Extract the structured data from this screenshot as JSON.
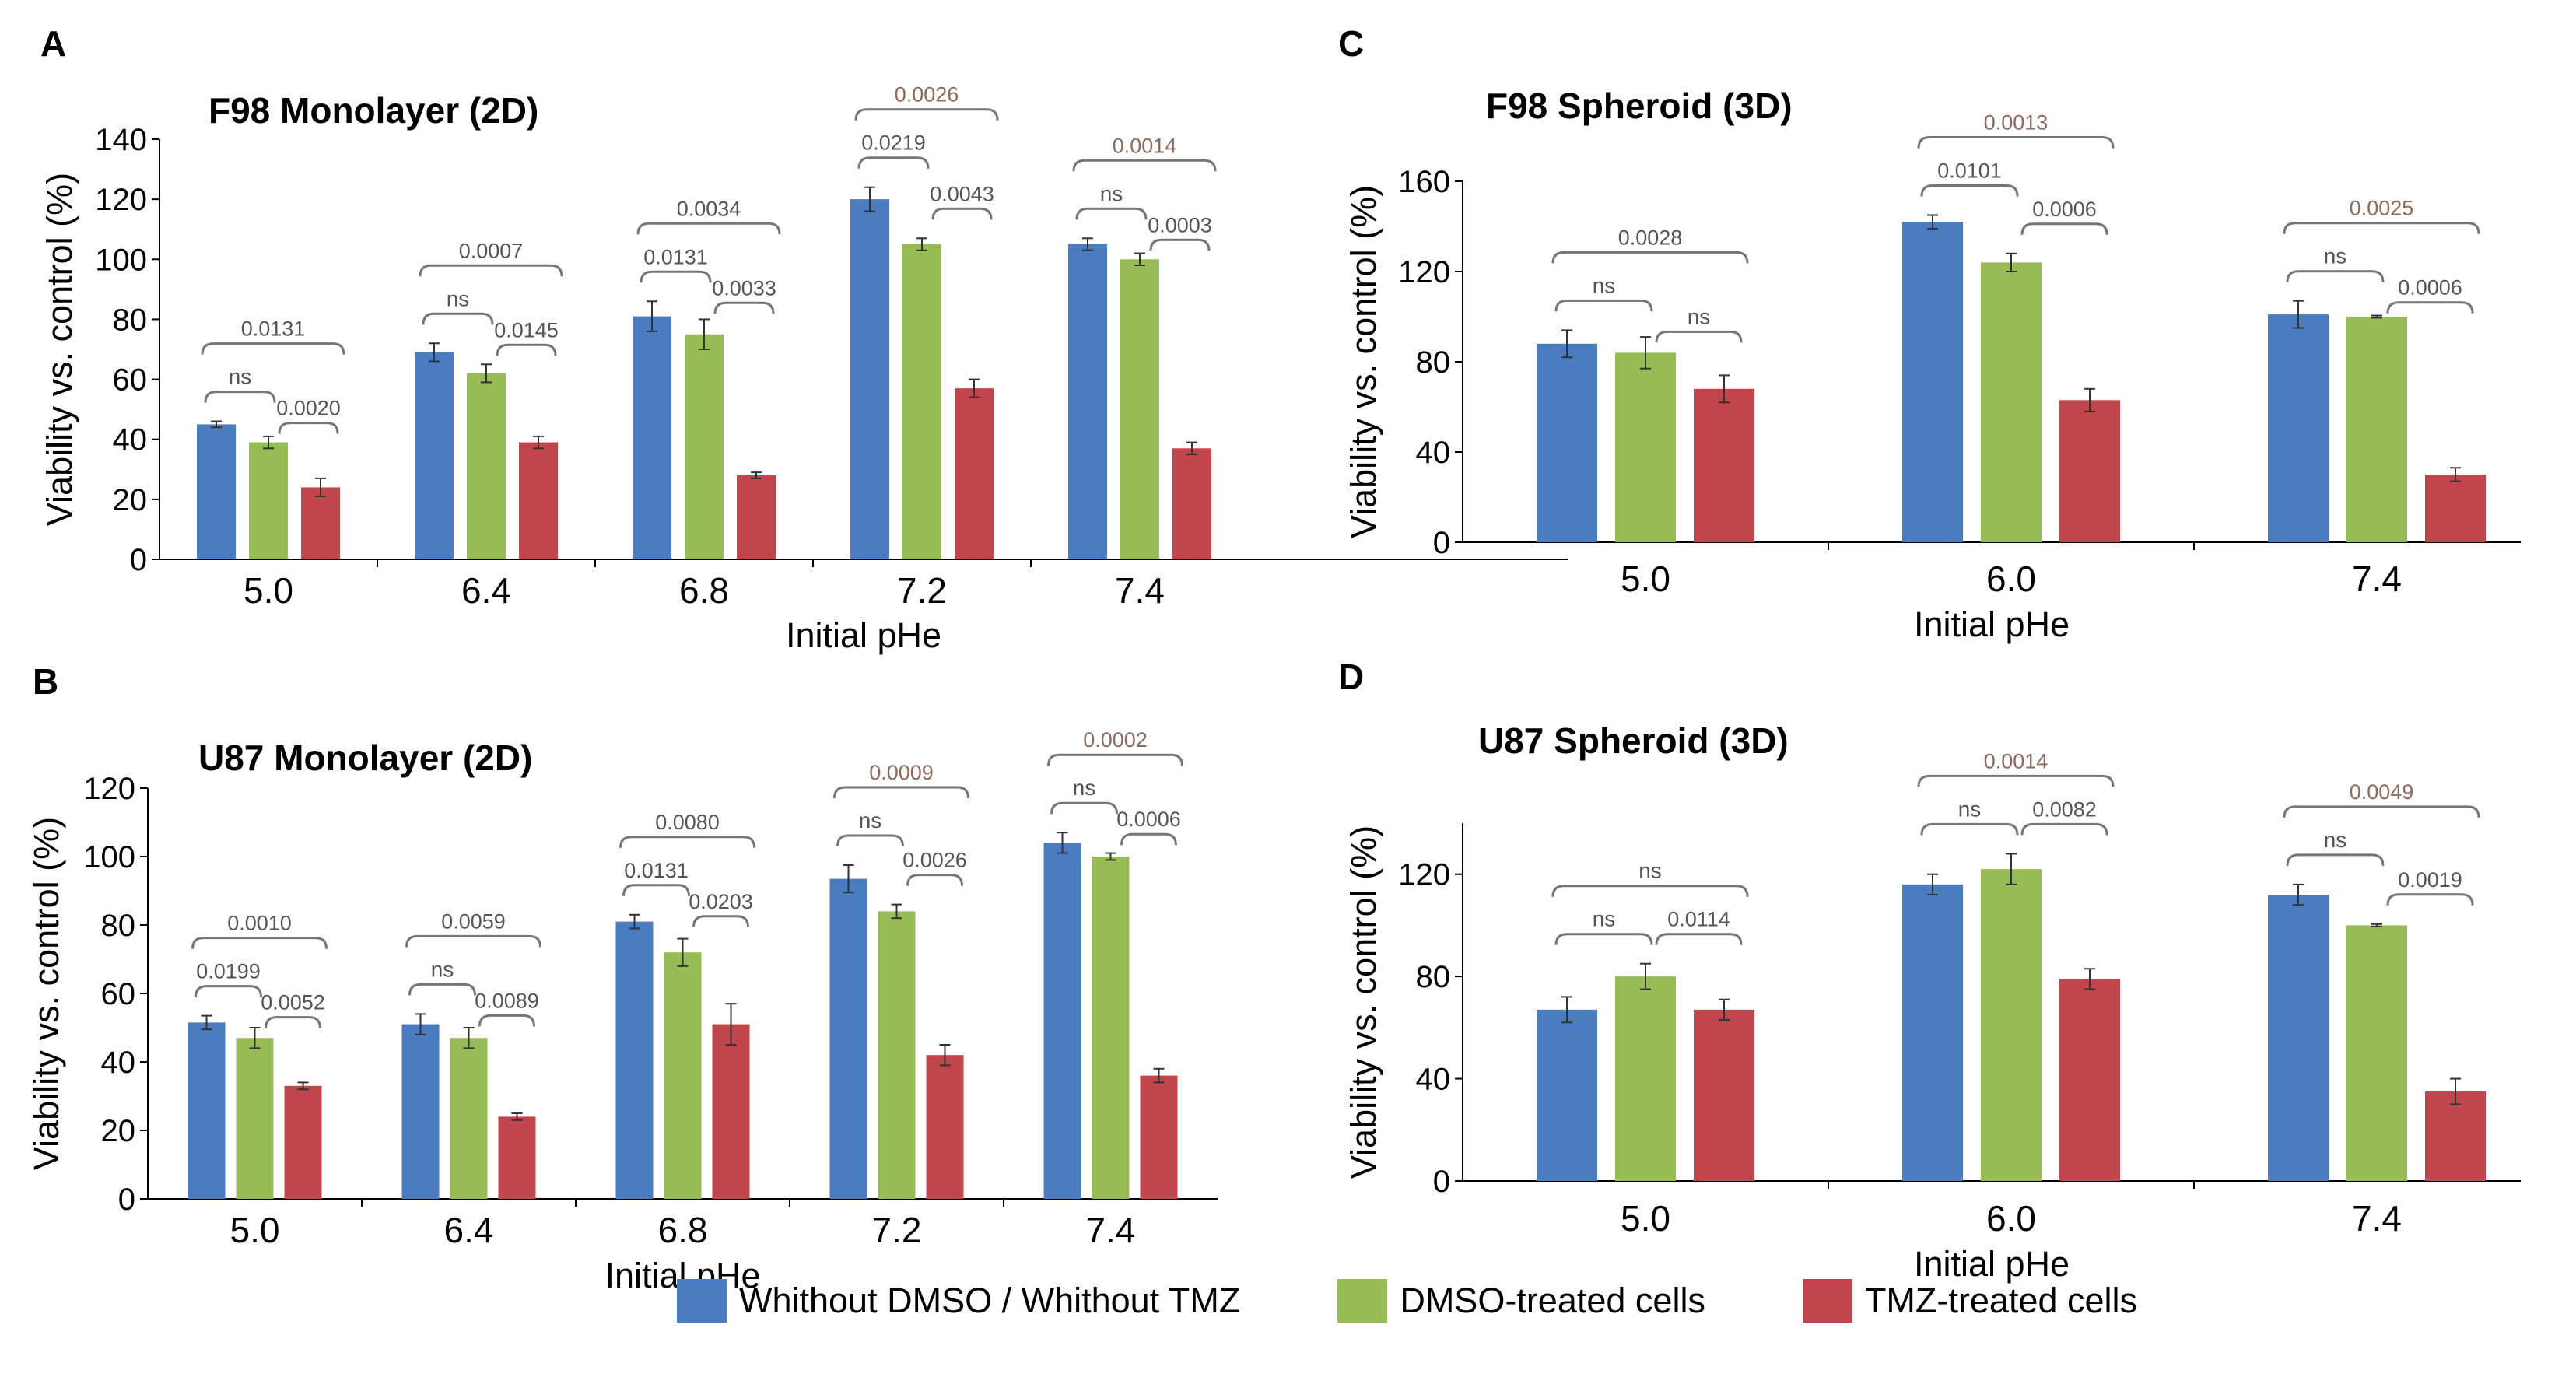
{
  "colors": {
    "blue": "#4a7cbf",
    "green": "#97bc55",
    "red": "#c0464b",
    "bracket": "#767676",
    "text": "#000000",
    "pvalue_highlight": "#8c6a5c"
  },
  "legend": {
    "items": [
      {
        "label": "Whithout DMSO / Whithout TMZ",
        "color": "#4a7cbf"
      },
      {
        "label": "DMSO-treated cells",
        "color": "#97bc55"
      },
      {
        "label": "TMZ-treated cells",
        "color": "#c0464b"
      }
    ]
  },
  "chart_data": [
    {
      "panel": "A",
      "type": "bar",
      "title": "F98 Monolayer (2D)",
      "xlabel": "Initial pHe",
      "ylabel": "Viability vs. control (%)",
      "ylim": [
        0,
        140
      ],
      "yticks": [
        0,
        20,
        40,
        60,
        80,
        100,
        120,
        140
      ],
      "categories": [
        "5.0",
        "6.4",
        "6.8",
        "7.2",
        "7.4"
      ],
      "series": [
        {
          "name": "Whithout DMSO / Whithout TMZ",
          "values": [
            45,
            69,
            81,
            120,
            105
          ],
          "errors": [
            1,
            3,
            5,
            4,
            2
          ]
        },
        {
          "name": "DMSO-treated cells",
          "values": [
            39,
            62,
            75,
            105,
            100
          ],
          "errors": [
            2,
            3,
            5,
            2,
            2
          ]
        },
        {
          "name": "TMZ-treated cells",
          "values": [
            24,
            39,
            28,
            57,
            37
          ],
          "errors": [
            3,
            2,
            1,
            3,
            2
          ]
        }
      ],
      "comparisons": [
        [
          {
            "level": "outer",
            "label": "0.0131"
          },
          {
            "level": "left",
            "label": "ns"
          },
          {
            "level": "right",
            "label": "0.0020"
          }
        ],
        [
          {
            "level": "outer",
            "label": "0.0007"
          },
          {
            "level": "left",
            "label": "ns"
          },
          {
            "level": "right",
            "label": "0.0145"
          }
        ],
        [
          {
            "level": "outer",
            "label": "0.0034"
          },
          {
            "level": "left",
            "label": "0.0131"
          },
          {
            "level": "right",
            "label": "0.0033"
          }
        ],
        [
          {
            "level": "outer",
            "label": "0.0026"
          },
          {
            "level": "left",
            "label": "0.0219"
          },
          {
            "level": "right",
            "label": "0.0043"
          }
        ],
        [
          {
            "level": "outer",
            "label": "0.0014"
          },
          {
            "level": "left",
            "label": "ns"
          },
          {
            "level": "right",
            "label": "0.0003"
          }
        ]
      ]
    },
    {
      "panel": "B",
      "type": "bar",
      "title": "U87 Monolayer (2D)",
      "xlabel": "Initial pHe",
      "ylabel": "Viability vs. control (%)",
      "ylim": [
        0,
        120
      ],
      "yticks": [
        0,
        20,
        40,
        60,
        80,
        100,
        120
      ],
      "categories": [
        "5.0",
        "6.4",
        "6.8",
        "7.2",
        "7.4"
      ],
      "series": [
        {
          "name": "Whithout DMSO / Whithout TMZ",
          "values": [
            51.5,
            51,
            81,
            93.5,
            104
          ],
          "errors": [
            2,
            3,
            2,
            4,
            3
          ]
        },
        {
          "name": "DMSO-treated cells",
          "values": [
            47,
            47,
            72,
            84,
            100
          ],
          "errors": [
            3,
            3,
            4,
            2,
            1
          ]
        },
        {
          "name": "TMZ-treated cells",
          "values": [
            33,
            24,
            51,
            42,
            36
          ],
          "errors": [
            1,
            1,
            6,
            3,
            2
          ]
        }
      ],
      "comparisons": [
        [
          {
            "level": "outer",
            "label": "0.0010"
          },
          {
            "level": "left",
            "label": "0.0199"
          },
          {
            "level": "right",
            "label": "0.0052"
          }
        ],
        [
          {
            "level": "outer",
            "label": "0.0059"
          },
          {
            "level": "left",
            "label": "ns"
          },
          {
            "level": "right",
            "label": "0.0089"
          }
        ],
        [
          {
            "level": "outer",
            "label": "0.0080"
          },
          {
            "level": "left",
            "label": "0.0131"
          },
          {
            "level": "right",
            "label": "0.0203"
          }
        ],
        [
          {
            "level": "outer",
            "label": "0.0009"
          },
          {
            "level": "left",
            "label": "ns"
          },
          {
            "level": "right",
            "label": "0.0026"
          }
        ],
        [
          {
            "level": "outer",
            "label": "0.0002"
          },
          {
            "level": "left",
            "label": "ns"
          },
          {
            "level": "right",
            "label": "0.0006"
          }
        ]
      ]
    },
    {
      "panel": "C",
      "type": "bar",
      "title": "F98 Spheroid (3D)",
      "xlabel": "Initial pHe",
      "ylabel": "Viability vs. control (%)",
      "ylim": [
        0,
        160
      ],
      "yticks": [
        0,
        40,
        80,
        120,
        160
      ],
      "categories": [
        "5.0",
        "6.0",
        "7.4"
      ],
      "series": [
        {
          "name": "Whithout DMSO / Whithout TMZ",
          "values": [
            88,
            142,
            101
          ],
          "errors": [
            6,
            3,
            6
          ]
        },
        {
          "name": "DMSO-treated cells",
          "values": [
            84,
            124,
            100
          ],
          "errors": [
            7,
            4,
            0.5
          ]
        },
        {
          "name": "TMZ-treated cells",
          "values": [
            68,
            63,
            30
          ],
          "errors": [
            6,
            5,
            3
          ]
        }
      ],
      "comparisons": [
        [
          {
            "level": "outer",
            "label": "0.0028"
          },
          {
            "level": "left",
            "label": "ns"
          },
          {
            "level": "right",
            "label": "ns"
          }
        ],
        [
          {
            "level": "outer",
            "label": "0.0013"
          },
          {
            "level": "left",
            "label": "0.0101"
          },
          {
            "level": "right",
            "label": "0.0006"
          }
        ],
        [
          {
            "level": "outer",
            "label": "0.0025"
          },
          {
            "level": "left",
            "label": "ns"
          },
          {
            "level": "right",
            "label": "0.0006"
          }
        ]
      ]
    },
    {
      "panel": "D",
      "type": "bar",
      "title": "U87 Spheroid (3D)",
      "xlabel": "Initial pHe",
      "ylabel": "Viability vs. control (%)",
      "ylim": [
        0,
        140
      ],
      "yticks": [
        0,
        40,
        80,
        120
      ],
      "categories": [
        "5.0",
        "6.0",
        "7.4"
      ],
      "series": [
        {
          "name": "Whithout DMSO / Whithout TMZ",
          "values": [
            67,
            116,
            112
          ],
          "errors": [
            5,
            4,
            4
          ]
        },
        {
          "name": "DMSO-treated cells",
          "values": [
            80,
            122,
            100
          ],
          "errors": [
            5,
            6,
            0.5
          ]
        },
        {
          "name": "TMZ-treated cells",
          "values": [
            67,
            79,
            35
          ],
          "errors": [
            4,
            4,
            5
          ]
        }
      ],
      "comparisons": [
        [
          {
            "level": "outer",
            "label": "ns"
          },
          {
            "level": "left",
            "label": "ns"
          },
          {
            "level": "right",
            "label": "0.0114"
          }
        ],
        [
          {
            "level": "outer",
            "label": "0.0014"
          },
          {
            "level": "left",
            "label": "ns"
          },
          {
            "level": "right",
            "label": "0.0082"
          }
        ],
        [
          {
            "level": "outer",
            "label": "0.0049"
          },
          {
            "level": "left",
            "label": "ns"
          },
          {
            "level": "right",
            "label": "0.0019"
          }
        ]
      ]
    }
  ]
}
